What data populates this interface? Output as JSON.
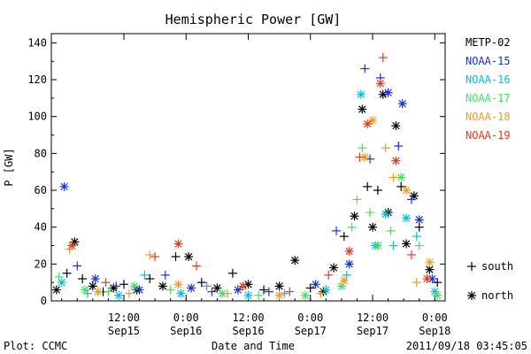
{
  "chart_data": {
    "type": "scatter",
    "title": "Hemispheric Power [GW]",
    "xlabel": "Date and Time",
    "ylabel": "P [GW]",
    "ylim": [
      0,
      145
    ],
    "xlim": [
      "2011-09-14T22:00",
      "2011-09-18T02:00"
    ],
    "y_ticks": [
      0,
      20,
      40,
      60,
      80,
      100,
      120,
      140
    ],
    "x_ticks": [
      {
        "t": "2011-09-15T12:00",
        "time": "12:00",
        "date": "Sep15"
      },
      {
        "t": "2011-09-16T00:00",
        "time": "0:00",
        "date": "Sep16"
      },
      {
        "t": "2011-09-16T12:00",
        "time": "12:00",
        "date": "Sep16"
      },
      {
        "t": "2011-09-17T00:00",
        "time": "0:00",
        "date": "Sep17"
      },
      {
        "t": "2011-09-17T12:00",
        "time": "12:00",
        "date": "Sep17"
      },
      {
        "t": "2011-09-18T00:00",
        "time": "0:00",
        "date": "Sep18"
      }
    ],
    "grid": false,
    "legend_position": "right",
    "marker_legend": [
      {
        "symbol": "+",
        "label": "south"
      },
      {
        "symbol": "*",
        "label": "north"
      }
    ],
    "series": [
      {
        "name": "METP-02",
        "color": "#000000",
        "points": [
          [
            "2011-09-14T23:00",
            6,
            "*"
          ],
          [
            "2011-09-15T01:00",
            15,
            "+"
          ],
          [
            "2011-09-15T02:30",
            32,
            "*"
          ],
          [
            "2011-09-15T04:00",
            12,
            "+"
          ],
          [
            "2011-09-15T06:00",
            8,
            "*"
          ],
          [
            "2011-09-15T08:00",
            5,
            "+"
          ],
          [
            "2011-09-15T10:00",
            7,
            "*"
          ],
          [
            "2011-09-15T12:00",
            9,
            "+"
          ],
          [
            "2011-09-15T14:30",
            6,
            "*"
          ],
          [
            "2011-09-15T17:00",
            12,
            "+"
          ],
          [
            "2011-09-15T19:30",
            8,
            "*"
          ],
          [
            "2011-09-15T22:00",
            24,
            "+"
          ],
          [
            "2011-09-16T00:30",
            24,
            "*"
          ],
          [
            "2011-09-16T03:00",
            10,
            "+"
          ],
          [
            "2011-09-16T06:00",
            7,
            "*"
          ],
          [
            "2011-09-16T09:00",
            15,
            "+"
          ],
          [
            "2011-09-16T12:00",
            9,
            "*"
          ],
          [
            "2011-09-16T15:00",
            6,
            "+"
          ],
          [
            "2011-09-16T18:00",
            8,
            "*"
          ],
          [
            "2011-09-16T21:00",
            22,
            "*"
          ],
          [
            "2011-09-17T00:00",
            7,
            "+"
          ],
          [
            "2011-09-17T02:30",
            5,
            "*"
          ],
          [
            "2011-09-17T04:30",
            18,
            "*"
          ],
          [
            "2011-09-17T06:30",
            35,
            "+"
          ],
          [
            "2011-09-17T08:30",
            46,
            "*"
          ],
          [
            "2011-09-17T10:00",
            104,
            "*"
          ],
          [
            "2011-09-17T11:00",
            62,
            "+"
          ],
          [
            "2011-09-17T12:00",
            40,
            "*"
          ],
          [
            "2011-09-17T13:00",
            60,
            "+"
          ],
          [
            "2011-09-17T14:00",
            112,
            "*"
          ],
          [
            "2011-09-17T15:00",
            48,
            "*"
          ],
          [
            "2011-09-17T16:30",
            95,
            "*"
          ],
          [
            "2011-09-17T17:30",
            62,
            "+"
          ],
          [
            "2011-09-17T18:30",
            31,
            "*"
          ],
          [
            "2011-09-17T20:00",
            57,
            "*"
          ],
          [
            "2011-09-17T21:00",
            40,
            "+"
          ],
          [
            "2011-09-17T23:00",
            17,
            "*"
          ],
          [
            "2011-09-18T00:30",
            10,
            "+"
          ]
        ]
      },
      {
        "name": "NOAA-15",
        "color": "#1a2fd6",
        "points": [
          [
            "2011-09-15T00:30",
            62,
            "*"
          ],
          [
            "2011-09-15T03:00",
            19,
            "+"
          ],
          [
            "2011-09-15T06:30",
            12,
            "*"
          ],
          [
            "2011-09-15T10:30",
            8,
            "+"
          ],
          [
            "2011-09-15T15:00",
            6,
            "*"
          ],
          [
            "2011-09-15T20:00",
            14,
            "+"
          ],
          [
            "2011-09-16T01:00",
            7,
            "*"
          ],
          [
            "2011-09-16T05:00",
            5,
            "+"
          ],
          [
            "2011-09-16T10:00",
            6,
            "*"
          ],
          [
            "2011-09-16T16:00",
            5,
            "+"
          ],
          [
            "2011-09-17T01:00",
            9,
            "*"
          ],
          [
            "2011-09-17T05:00",
            38,
            "+"
          ],
          [
            "2011-09-17T07:30",
            20,
            "*"
          ],
          [
            "2011-09-17T10:30",
            126,
            "+"
          ],
          [
            "2011-09-17T11:30",
            77,
            "+"
          ],
          [
            "2011-09-17T13:30",
            121,
            "+"
          ],
          [
            "2011-09-17T15:00",
            113,
            "*"
          ],
          [
            "2011-09-17T17:00",
            84,
            "+"
          ],
          [
            "2011-09-17T17:45",
            107,
            "*"
          ],
          [
            "2011-09-17T19:30",
            55,
            "+"
          ],
          [
            "2011-09-17T21:00",
            44,
            "*"
          ],
          [
            "2011-09-17T23:30",
            12,
            "*"
          ]
        ]
      },
      {
        "name": "NOAA-16",
        "color": "#00bfe0",
        "points": [
          [
            "2011-09-15T00:00",
            10,
            "*"
          ],
          [
            "2011-09-15T05:00",
            4,
            "+"
          ],
          [
            "2011-09-15T11:00",
            3,
            "*"
          ],
          [
            "2011-09-15T16:00",
            14,
            "+"
          ],
          [
            "2011-09-15T23:00",
            4,
            "*"
          ],
          [
            "2011-09-16T04:00",
            8,
            "+"
          ],
          [
            "2011-09-16T12:00",
            3,
            "*"
          ],
          [
            "2011-09-16T19:00",
            4,
            "+"
          ],
          [
            "2011-09-17T03:00",
            6,
            "*"
          ],
          [
            "2011-09-17T07:00",
            14,
            "+"
          ],
          [
            "2011-09-17T09:45",
            112,
            "*"
          ],
          [
            "2011-09-17T12:30",
            30,
            "*"
          ],
          [
            "2011-09-17T14:30",
            47,
            "*"
          ],
          [
            "2011-09-17T16:00",
            30,
            "+"
          ],
          [
            "2011-09-17T18:30",
            45,
            "*"
          ],
          [
            "2011-09-17T20:30",
            35,
            "+"
          ],
          [
            "2011-09-18T00:00",
            5,
            "*"
          ]
        ]
      },
      {
        "name": "NOAA-17",
        "color": "#3de35e",
        "points": [
          [
            "2011-09-14T23:30",
            13,
            "+"
          ],
          [
            "2011-09-15T04:30",
            6,
            "*"
          ],
          [
            "2011-09-15T09:00",
            5,
            "+"
          ],
          [
            "2011-09-15T14:00",
            8,
            "*"
          ],
          [
            "2011-09-15T21:00",
            6,
            "+"
          ],
          [
            "2011-09-16T07:00",
            4,
            "*"
          ],
          [
            "2011-09-16T14:00",
            3,
            "+"
          ],
          [
            "2011-09-16T23:00",
            3,
            "*"
          ],
          [
            "2011-09-17T06:00",
            8,
            "*"
          ],
          [
            "2011-09-17T08:00",
            40,
            "+"
          ],
          [
            "2011-09-17T10:00",
            83,
            "+"
          ],
          [
            "2011-09-17T11:30",
            48,
            "+"
          ],
          [
            "2011-09-17T13:00",
            30,
            "*"
          ],
          [
            "2011-09-17T15:30",
            38,
            "+"
          ],
          [
            "2011-09-17T17:30",
            67,
            "*"
          ],
          [
            "2011-09-17T21:00",
            30,
            "+"
          ],
          [
            "2011-09-18T00:30",
            3,
            "*"
          ]
        ]
      },
      {
        "name": "NOAA-18",
        "color": "#f09a1e",
        "points": [
          [
            "2011-09-15T01:30",
            28,
            "+"
          ],
          [
            "2011-09-15T07:00",
            5,
            "*"
          ],
          [
            "2011-09-15T13:00",
            4,
            "+"
          ],
          [
            "2011-09-15T17:00",
            25,
            "+"
          ],
          [
            "2011-09-15T22:30",
            9,
            "*"
          ],
          [
            "2011-09-16T08:00",
            4,
            "+"
          ],
          [
            "2011-09-16T18:00",
            3,
            "*"
          ],
          [
            "2011-09-17T02:00",
            4,
            "+"
          ],
          [
            "2011-09-17T06:30",
            11,
            "*"
          ],
          [
            "2011-09-17T09:00",
            55,
            "+"
          ],
          [
            "2011-09-17T10:30",
            78,
            "*"
          ],
          [
            "2011-09-17T12:00",
            98,
            "*"
          ],
          [
            "2011-09-17T14:30",
            83,
            "+"
          ],
          [
            "2011-09-17T16:00",
            67,
            "+"
          ],
          [
            "2011-09-17T18:30",
            60,
            "*"
          ],
          [
            "2011-09-17T20:30",
            10,
            "+"
          ],
          [
            "2011-09-17T23:00",
            21,
            "*"
          ]
        ]
      },
      {
        "name": "NOAA-19",
        "color": "#e33a1c",
        "points": [
          [
            "2011-09-15T02:00",
            30,
            "*"
          ],
          [
            "2011-09-15T08:30",
            10,
            "+"
          ],
          [
            "2011-09-15T18:00",
            24,
            "+"
          ],
          [
            "2011-09-15T22:30",
            31,
            "*"
          ],
          [
            "2011-09-16T02:00",
            19,
            "+"
          ],
          [
            "2011-09-16T11:00",
            8,
            "*"
          ],
          [
            "2011-09-16T20:00",
            5,
            "+"
          ],
          [
            "2011-09-17T03:30",
            14,
            "+"
          ],
          [
            "2011-09-17T07:30",
            27,
            "*"
          ],
          [
            "2011-09-17T09:30",
            78,
            "+"
          ],
          [
            "2011-09-17T11:00",
            96,
            "*"
          ],
          [
            "2011-09-17T13:30",
            118,
            "*"
          ],
          [
            "2011-09-17T14:00",
            132,
            "+"
          ],
          [
            "2011-09-17T16:30",
            76,
            "*"
          ],
          [
            "2011-09-17T19:30",
            25,
            "+"
          ],
          [
            "2011-09-17T22:30",
            12,
            "*"
          ]
        ]
      }
    ]
  },
  "footer": {
    "plot_credit": "Plot: CCMC",
    "timestamp": "2011/09/18 03:45:05"
  }
}
